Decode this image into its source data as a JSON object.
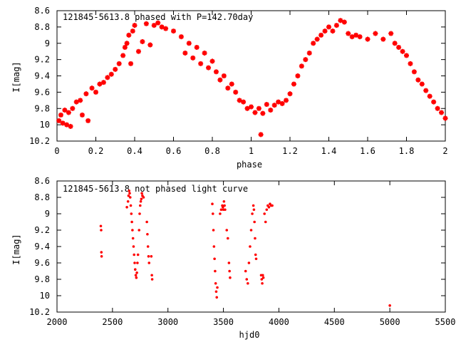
{
  "chart_data": [
    {
      "type": "scatter",
      "title": "121845-5613.8 phased with P=142.70day",
      "xlabel": "phase",
      "ylabel": "I[mag]",
      "xlim": [
        0,
        2
      ],
      "ylim": [
        10.2,
        8.6
      ],
      "y_inverted": true,
      "grid": false,
      "marker": "star",
      "color": "#ff0000",
      "x_ticks": [
        0,
        0.2,
        0.4,
        0.6,
        0.8,
        1,
        1.2,
        1.4,
        1.6,
        1.8,
        2
      ],
      "y_ticks": [
        8.6,
        8.8,
        9,
        9.2,
        9.4,
        9.6,
        9.8,
        10,
        10.2
      ],
      "x_tick_labels": [
        "0",
        "0.2",
        "0.4",
        "0.6",
        "0.8",
        "1",
        "1.2",
        "1.4",
        "1.6",
        "1.8",
        "2"
      ],
      "y_tick_labels": [
        "8.6",
        "8.8",
        "9",
        "9.2",
        "9.4",
        "9.6",
        "9.8",
        "10",
        "10.2"
      ],
      "points": [
        [
          0.01,
          9.95
        ],
        [
          0.02,
          9.88
        ],
        [
          0.03,
          9.98
        ],
        [
          0.04,
          9.82
        ],
        [
          0.05,
          10.0
        ],
        [
          0.06,
          9.85
        ],
        [
          0.07,
          10.02
        ],
        [
          0.08,
          9.8
        ],
        [
          0.1,
          9.72
        ],
        [
          0.12,
          9.7
        ],
        [
          0.13,
          9.88
        ],
        [
          0.15,
          9.62
        ],
        [
          0.16,
          9.95
        ],
        [
          0.18,
          9.55
        ],
        [
          0.2,
          9.6
        ],
        [
          0.22,
          9.5
        ],
        [
          0.24,
          9.48
        ],
        [
          0.26,
          9.42
        ],
        [
          0.28,
          9.38
        ],
        [
          0.3,
          9.32
        ],
        [
          0.32,
          9.25
        ],
        [
          0.34,
          9.15
        ],
        [
          0.35,
          9.05
        ],
        [
          0.36,
          9.0
        ],
        [
          0.37,
          8.9
        ],
        [
          0.38,
          9.25
        ],
        [
          0.39,
          8.85
        ],
        [
          0.4,
          8.78
        ],
        [
          0.42,
          9.1
        ],
        [
          0.44,
          8.98
        ],
        [
          0.46,
          8.76
        ],
        [
          0.48,
          9.02
        ],
        [
          0.5,
          8.78
        ],
        [
          0.52,
          8.75
        ],
        [
          0.54,
          8.8
        ],
        [
          0.56,
          8.82
        ],
        [
          0.6,
          8.85
        ],
        [
          0.64,
          8.92
        ],
        [
          0.66,
          9.12
        ],
        [
          0.68,
          9.0
        ],
        [
          0.7,
          9.18
        ],
        [
          0.72,
          9.05
        ],
        [
          0.74,
          9.25
        ],
        [
          0.76,
          9.12
        ],
        [
          0.78,
          9.3
        ],
        [
          0.8,
          9.22
        ],
        [
          0.82,
          9.35
        ],
        [
          0.84,
          9.45
        ],
        [
          0.86,
          9.4
        ],
        [
          0.88,
          9.55
        ],
        [
          0.9,
          9.5
        ],
        [
          0.92,
          9.6
        ],
        [
          0.94,
          9.7
        ],
        [
          0.96,
          9.72
        ],
        [
          0.98,
          9.8
        ],
        [
          1.0,
          9.78
        ],
        [
          1.02,
          9.85
        ],
        [
          1.04,
          9.8
        ],
        [
          1.05,
          10.12
        ],
        [
          1.06,
          9.86
        ],
        [
          1.08,
          9.75
        ],
        [
          1.1,
          9.82
        ],
        [
          1.12,
          9.76
        ],
        [
          1.14,
          9.72
        ],
        [
          1.16,
          9.74
        ],
        [
          1.18,
          9.7
        ],
        [
          1.2,
          9.62
        ],
        [
          1.22,
          9.5
        ],
        [
          1.24,
          9.4
        ],
        [
          1.26,
          9.28
        ],
        [
          1.28,
          9.2
        ],
        [
          1.3,
          9.12
        ],
        [
          1.32,
          9.0
        ],
        [
          1.34,
          8.95
        ],
        [
          1.36,
          8.9
        ],
        [
          1.38,
          8.85
        ],
        [
          1.4,
          8.8
        ],
        [
          1.42,
          8.85
        ],
        [
          1.44,
          8.78
        ],
        [
          1.46,
          8.72
        ],
        [
          1.48,
          8.74
        ],
        [
          1.5,
          8.88
        ],
        [
          1.52,
          8.92
        ],
        [
          1.54,
          8.9
        ],
        [
          1.56,
          8.92
        ],
        [
          1.6,
          8.95
        ],
        [
          1.64,
          8.88
        ],
        [
          1.68,
          8.95
        ],
        [
          1.72,
          8.88
        ],
        [
          1.74,
          9.0
        ],
        [
          1.76,
          9.05
        ],
        [
          1.78,
          9.1
        ],
        [
          1.8,
          9.15
        ],
        [
          1.82,
          9.25
        ],
        [
          1.84,
          9.35
        ],
        [
          1.86,
          9.45
        ],
        [
          1.88,
          9.5
        ],
        [
          1.9,
          9.58
        ],
        [
          1.92,
          9.65
        ],
        [
          1.94,
          9.72
        ],
        [
          1.96,
          9.8
        ],
        [
          1.98,
          9.85
        ],
        [
          2.0,
          9.92
        ]
      ]
    },
    {
      "type": "scatter",
      "title": "121845-5613.8 not phased light curve",
      "xlabel": "hjd0",
      "ylabel": "I[mag]",
      "xlim": [
        2000,
        5500
      ],
      "ylim": [
        10.2,
        8.6
      ],
      "y_inverted": true,
      "grid": false,
      "marker": "dot",
      "color": "#ff0000",
      "x_ticks": [
        2000,
        2500,
        3000,
        3500,
        4000,
        4500,
        5000,
        5500
      ],
      "y_ticks": [
        8.6,
        8.8,
        9,
        9.2,
        9.4,
        9.6,
        9.8,
        10,
        10.2
      ],
      "x_tick_labels": [
        "2000",
        "2500",
        "3000",
        "3500",
        "4000",
        "4500",
        "5000",
        "5500"
      ],
      "y_tick_labels": [
        "8.6",
        "8.8",
        "9",
        "9.2",
        "9.4",
        "9.6",
        "9.8",
        "10",
        "10.2"
      ],
      "points": [
        [
          2395,
          9.15
        ],
        [
          2398,
          9.2
        ],
        [
          2400,
          9.47
        ],
        [
          2402,
          9.52
        ],
        [
          2630,
          8.92
        ],
        [
          2640,
          8.85
        ],
        [
          2645,
          8.78
        ],
        [
          2650,
          8.72
        ],
        [
          2655,
          8.75
        ],
        [
          2660,
          8.8
        ],
        [
          2665,
          8.9
        ],
        [
          2670,
          9.0
        ],
        [
          2675,
          9.1
        ],
        [
          2680,
          9.2
        ],
        [
          2685,
          9.3
        ],
        [
          2690,
          9.4
        ],
        [
          2695,
          9.5
        ],
        [
          2700,
          9.6
        ],
        [
          2705,
          9.68
        ],
        [
          2710,
          9.75
        ],
        [
          2715,
          9.78
        ],
        [
          2720,
          9.72
        ],
        [
          2725,
          9.6
        ],
        [
          2730,
          9.5
        ],
        [
          2740,
          9.2
        ],
        [
          2745,
          9.0
        ],
        [
          2750,
          8.9
        ],
        [
          2755,
          8.85
        ],
        [
          2760,
          8.82
        ],
        [
          2765,
          8.75
        ],
        [
          2770,
          8.78
        ],
        [
          2780,
          8.8
        ],
        [
          2810,
          9.1
        ],
        [
          2815,
          9.25
        ],
        [
          2820,
          9.4
        ],
        [
          2825,
          9.52
        ],
        [
          2830,
          9.6
        ],
        [
          2850,
          9.52
        ],
        [
          2855,
          9.75
        ],
        [
          2858,
          9.8
        ],
        [
          3400,
          8.88
        ],
        [
          3405,
          9.0
        ],
        [
          3410,
          9.2
        ],
        [
          3415,
          9.4
        ],
        [
          3420,
          9.55
        ],
        [
          3425,
          9.7
        ],
        [
          3430,
          9.85
        ],
        [
          3435,
          9.95
        ],
        [
          3440,
          10.02
        ],
        [
          3445,
          9.9
        ],
        [
          3470,
          9.0
        ],
        [
          3480,
          8.95
        ],
        [
          3490,
          8.9
        ],
        [
          3495,
          8.92
        ],
        [
          3500,
          8.95
        ],
        [
          3505,
          8.85
        ],
        [
          3510,
          8.9
        ],
        [
          3515,
          8.95
        ],
        [
          3530,
          9.2
        ],
        [
          3540,
          9.3
        ],
        [
          3550,
          9.6
        ],
        [
          3555,
          9.7
        ],
        [
          3560,
          9.78
        ],
        [
          3700,
          9.7
        ],
        [
          3710,
          9.8
        ],
        [
          3720,
          9.85
        ],
        [
          3730,
          9.6
        ],
        [
          3740,
          9.4
        ],
        [
          3750,
          9.2
        ],
        [
          3760,
          9.0
        ],
        [
          3770,
          8.9
        ],
        [
          3775,
          8.95
        ],
        [
          3780,
          9.1
        ],
        [
          3785,
          9.3
        ],
        [
          3790,
          9.5
        ],
        [
          3795,
          9.55
        ],
        [
          3840,
          9.75
        ],
        [
          3845,
          9.8
        ],
        [
          3850,
          9.85
        ],
        [
          3855,
          9.75
        ],
        [
          3860,
          9.78
        ],
        [
          3870,
          9.0
        ],
        [
          3880,
          9.1
        ],
        [
          3890,
          8.95
        ],
        [
          3900,
          8.9
        ],
        [
          3910,
          8.92
        ],
        [
          3920,
          8.88
        ],
        [
          3930,
          8.9
        ],
        [
          3940,
          8.9
        ],
        [
          5000,
          10.12
        ]
      ]
    }
  ]
}
